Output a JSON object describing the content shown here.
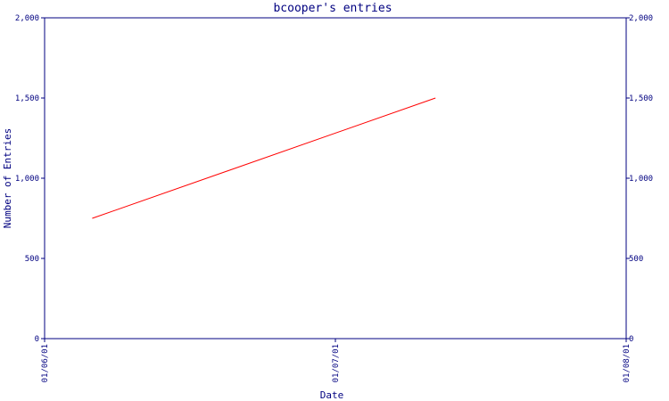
{
  "chart_data": {
    "type": "line",
    "title": "bcooper's entries",
    "xlabel": "Date",
    "ylabel": "Number of Entries",
    "x_ticks": [
      "01/06/01",
      "01/07/01",
      "01/08/01"
    ],
    "y_ticks": [
      "0",
      "500",
      "1,000",
      "1,500",
      "2,000"
    ],
    "y_ticks_right": [
      "0",
      "500",
      "1,000",
      "1,500",
      "2,000"
    ],
    "ylim": [
      0,
      2000
    ],
    "xlim": [
      "2001-06-01",
      "2001-08-01"
    ],
    "grid": false,
    "series": [
      {
        "color": "#ff0000",
        "points": [
          {
            "x": "2001-06-06",
            "y": 750
          },
          {
            "x": "2001-07-12",
            "y": 1500
          }
        ]
      }
    ],
    "colors": {
      "axis": "#000080",
      "text": "#000080",
      "line": "#ff0000"
    }
  }
}
